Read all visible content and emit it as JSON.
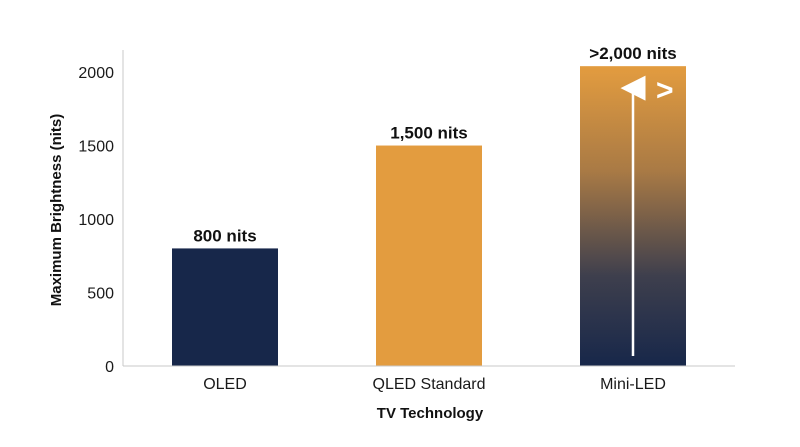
{
  "chart_data": {
    "type": "bar",
    "categories": [
      "OLED",
      "QLED Standard",
      "Mini-LED"
    ],
    "values": [
      800,
      1500,
      2040
    ],
    "data_labels": [
      "800 nits",
      "1,500 nits",
      ">2,000 nits"
    ],
    "xlabel": "TV Technology",
    "ylabel": "Maximum Brightness (nits)",
    "ylim": [
      0,
      2150
    ],
    "yticks": [
      0,
      500,
      1000,
      1500,
      2000
    ],
    "grid": false,
    "colors": {
      "OLED": "#17274a",
      "QLED Standard": "#e39c3f",
      "Mini-LED": "gradient #e39c3f to #17274a"
    },
    "annotation": {
      "category": "Mini-LED",
      "icon": "up-arrow-icon",
      "symbol": ">"
    }
  }
}
